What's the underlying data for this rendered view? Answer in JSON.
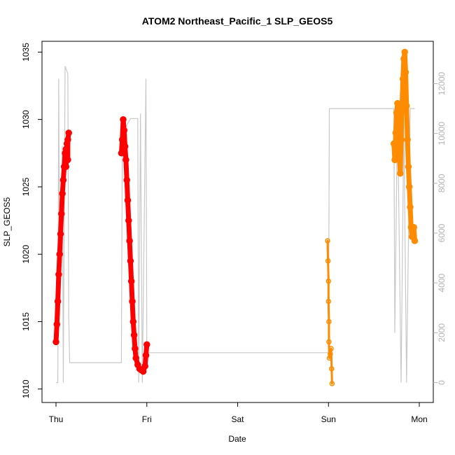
{
  "chart_data": {
    "type": "scatter",
    "title": "ATOM2 Northeast_Pacific_1 SLP_GEOS5",
    "xlabel": "Date",
    "ylabel": "SLP_GEOS5",
    "x_ticks": [
      "Thu",
      "Fri",
      "Sat",
      "Sun",
      "Mon"
    ],
    "xlim": [
      0,
      4.15
    ],
    "ylim": [
      1009,
      1035.8
    ],
    "y_ticks": [
      1010,
      1015,
      1020,
      1025,
      1030,
      1035
    ],
    "y2_ticks": [
      0,
      2000,
      4000,
      6000,
      8000,
      10000,
      12000
    ],
    "y2lim": [
      -800,
      13700
    ],
    "grid": false,
    "series": [
      {
        "color": "#ff0000",
        "style": "thick-points",
        "points": [
          [
            0.0,
            1013.5
          ],
          [
            0.01,
            1014.8
          ],
          [
            0.02,
            1016.5
          ],
          [
            0.03,
            1018.5
          ],
          [
            0.04,
            1020.0
          ],
          [
            0.05,
            1021.5
          ],
          [
            0.06,
            1023.0
          ],
          [
            0.07,
            1024.5
          ],
          [
            0.08,
            1025.5
          ],
          [
            0.09,
            1026.5
          ],
          [
            0.1,
            1027.5
          ],
          [
            0.11,
            1027.8
          ],
          [
            0.11,
            1026.5
          ],
          [
            0.12,
            1028.2
          ],
          [
            0.13,
            1027.0
          ],
          [
            0.13,
            1028.5
          ],
          [
            0.14,
            1029.0
          ]
        ]
      },
      {
        "color": "#ff0000",
        "style": "thick-points",
        "points": [
          [
            0.72,
            1027.5
          ],
          [
            0.73,
            1028.5
          ],
          [
            0.74,
            1030.0
          ],
          [
            0.75,
            1029.2
          ],
          [
            0.76,
            1028.0
          ],
          [
            0.77,
            1027.0
          ],
          [
            0.78,
            1025.5
          ],
          [
            0.79,
            1024.0
          ],
          [
            0.8,
            1022.5
          ],
          [
            0.81,
            1021.0
          ],
          [
            0.82,
            1019.5
          ],
          [
            0.83,
            1018.0
          ],
          [
            0.84,
            1016.5
          ],
          [
            0.85,
            1015.0
          ],
          [
            0.86,
            1014.0
          ],
          [
            0.87,
            1013.0
          ],
          [
            0.88,
            1012.3
          ],
          [
            0.9,
            1011.8
          ],
          [
            0.92,
            1011.5
          ],
          [
            0.94,
            1011.4
          ],
          [
            0.96,
            1011.3
          ],
          [
            0.98,
            1011.7
          ],
          [
            0.99,
            1012.5
          ],
          [
            1.0,
            1013.3
          ]
        ]
      },
      {
        "color": "#ff8c00",
        "style": "points",
        "points": [
          [
            2.99,
            1021.0
          ],
          [
            2.995,
            1019.5
          ],
          [
            3.0,
            1018.0
          ],
          [
            3.0,
            1016.5
          ],
          [
            3.005,
            1015.0
          ],
          [
            3.005,
            1013.5
          ],
          [
            3.01,
            1012.3
          ],
          [
            3.02,
            1012.6
          ],
          [
            3.03,
            1013.0
          ],
          [
            3.035,
            1011.5
          ],
          [
            3.04,
            1010.4
          ]
        ]
      },
      {
        "color": "#ff8c00",
        "style": "thick-points",
        "points": [
          [
            3.72,
            1028.2
          ],
          [
            3.73,
            1027.0
          ],
          [
            3.74,
            1029.0
          ],
          [
            3.75,
            1030.5
          ],
          [
            3.76,
            1031.2
          ],
          [
            3.77,
            1029.5
          ],
          [
            3.78,
            1027.5
          ],
          [
            3.79,
            1026.0
          ],
          [
            3.8,
            1028.5
          ],
          [
            3.81,
            1031.0
          ],
          [
            3.82,
            1033.0
          ],
          [
            3.83,
            1034.5
          ],
          [
            3.84,
            1035.0
          ],
          [
            3.85,
            1033.5
          ],
          [
            3.86,
            1031.0
          ],
          [
            3.87,
            1028.5
          ],
          [
            3.88,
            1026.5
          ],
          [
            3.89,
            1025.0
          ],
          [
            3.9,
            1023.5
          ],
          [
            3.91,
            1022.0
          ],
          [
            3.92,
            1021.3
          ],
          [
            3.93,
            1021.8
          ],
          [
            3.94,
            1022.0
          ],
          [
            3.95,
            1021.0
          ]
        ]
      }
    ],
    "secondary_line": {
      "color": "#c8c8c8",
      "axis": "right",
      "points": [
        [
          0.0,
          0.0
        ],
        [
          0.02,
          0.0
        ],
        [
          0.03,
          12200
        ],
        [
          0.04,
          2700
        ],
        [
          0.07,
          9500
        ],
        [
          0.08,
          0.0
        ],
        [
          0.1,
          12700
        ],
        [
          0.13,
          12400
        ],
        [
          0.14,
          2700
        ],
        [
          0.15,
          800
        ],
        [
          0.72,
          800
        ],
        [
          0.73,
          9500
        ],
        [
          0.76,
          10200
        ],
        [
          0.82,
          10600
        ],
        [
          0.9,
          10600
        ],
        [
          0.91,
          0.0
        ],
        [
          0.93,
          10800
        ],
        [
          0.95,
          0.0
        ],
        [
          0.99,
          12200
        ],
        [
          1.0,
          1200
        ],
        [
          3.0,
          1200
        ],
        [
          3.01,
          11000
        ],
        [
          3.05,
          11000
        ],
        [
          3.6,
          11000
        ],
        [
          3.72,
          11000
        ],
        [
          3.73,
          2000
        ],
        [
          3.76,
          11000
        ],
        [
          3.8,
          0.0
        ],
        [
          3.83,
          10500
        ],
        [
          3.86,
          0.0
        ],
        [
          3.9,
          11000
        ],
        [
          3.95,
          11000
        ]
      ]
    }
  }
}
